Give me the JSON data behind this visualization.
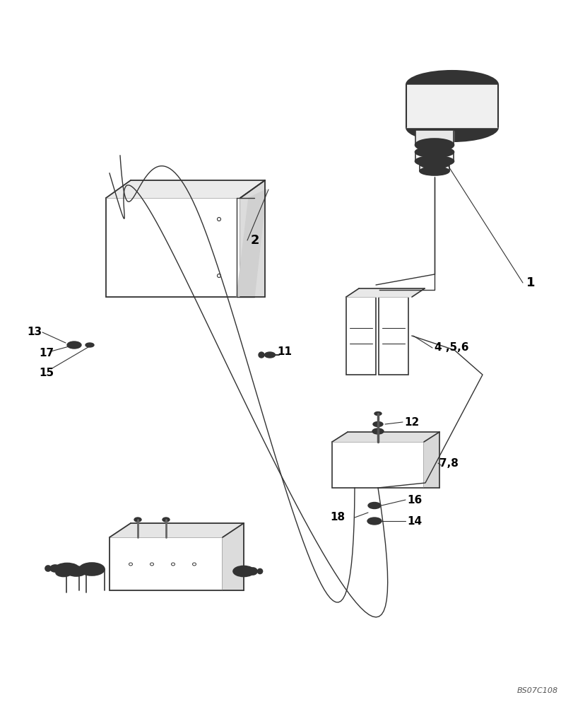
{
  "bg_color": "#ffffff",
  "line_color": "#333333",
  "label_color": "#000000",
  "watermark": "BS07C108",
  "parts": {
    "part1_label": "1",
    "part2_label": "2",
    "part4_label": "4 ,5,6",
    "part7_label": "7,8",
    "part11_label": "11",
    "part12_label": "12",
    "part13_label": "13",
    "part14_label": "14",
    "part15_label": "15",
    "part16_label": "16",
    "part17_label": "17",
    "part18_label": "18"
  }
}
